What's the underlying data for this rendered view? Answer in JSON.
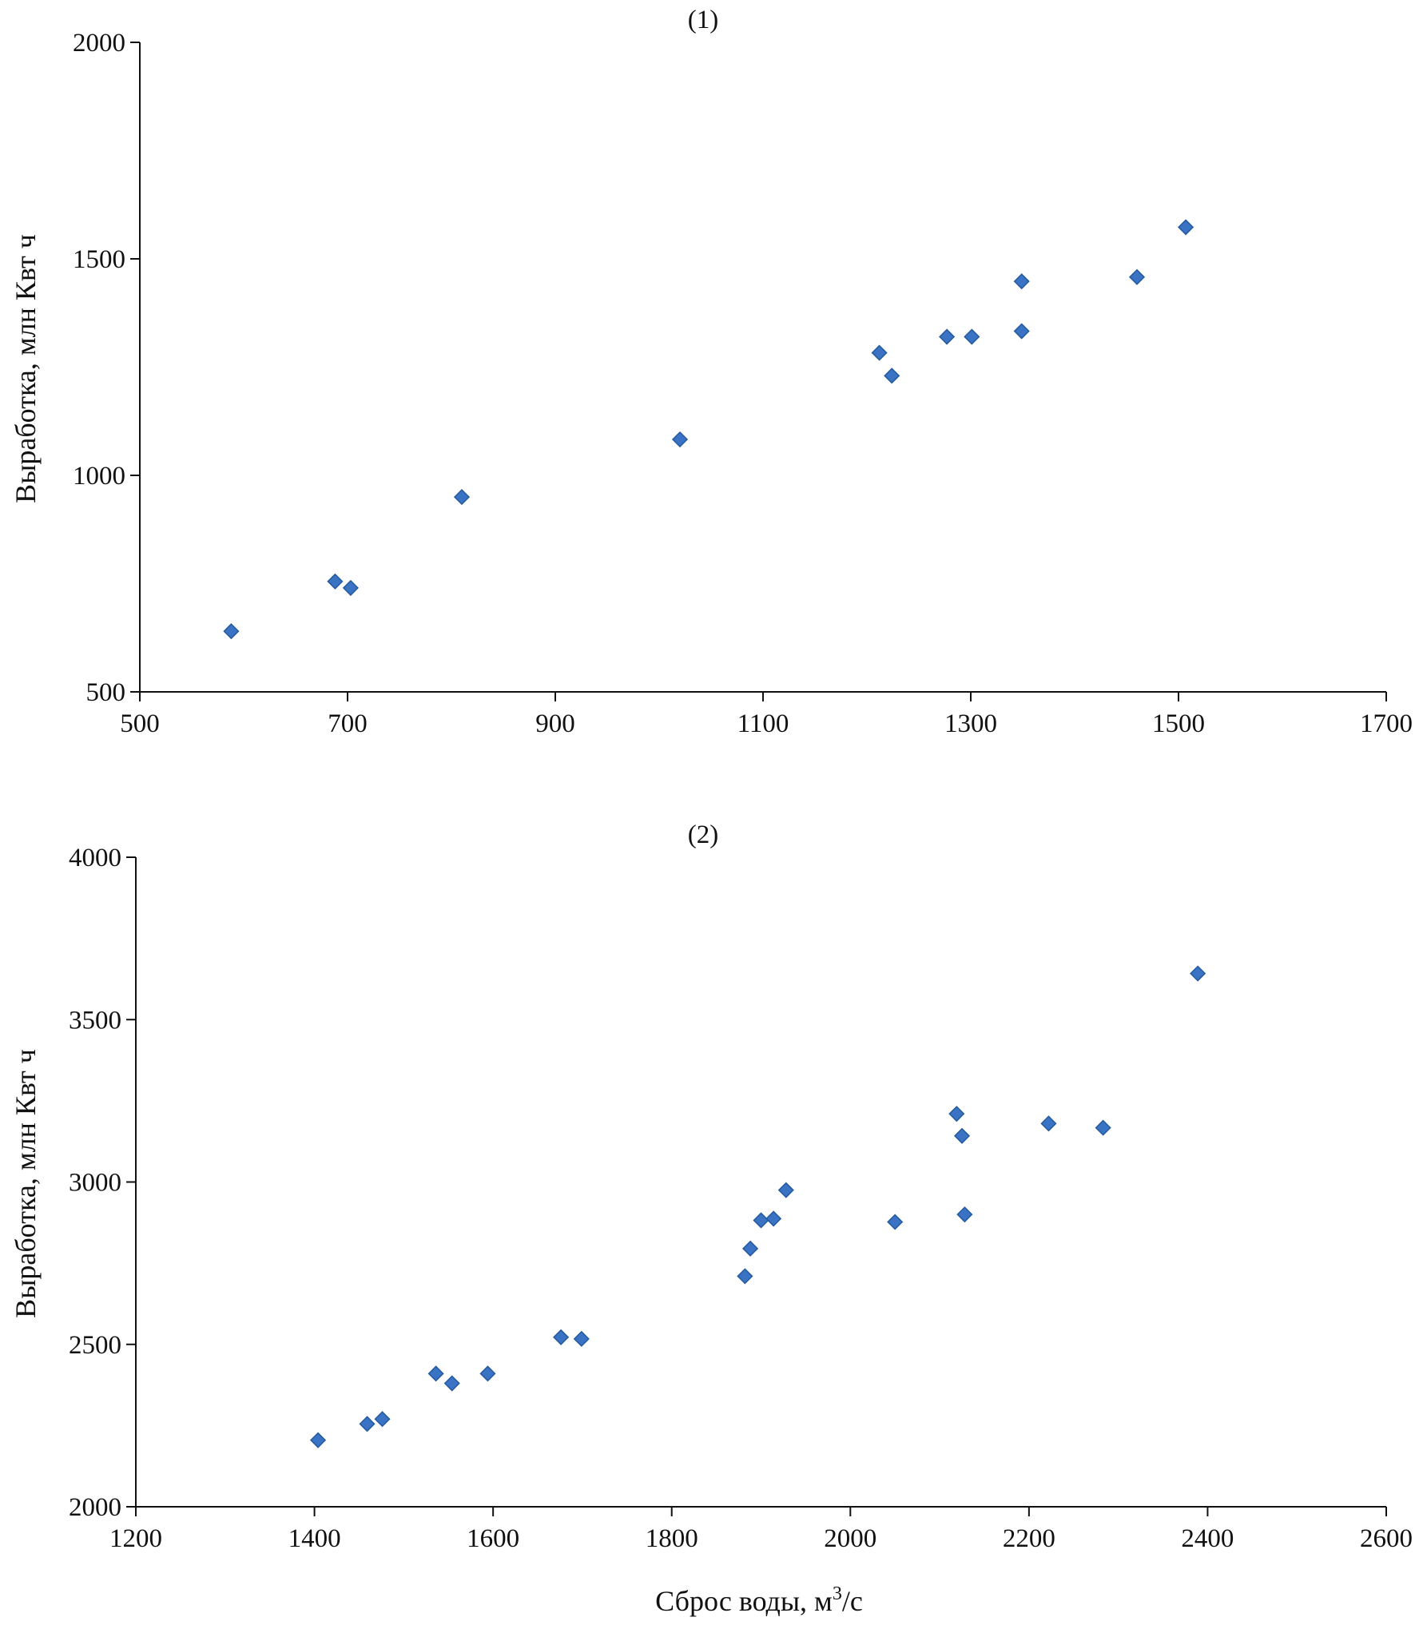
{
  "chart_data": [
    {
      "type": "scatter",
      "title": "(1)",
      "xlabel": "",
      "ylabel": "Выработка, млн Квт ч",
      "xlim": [
        500,
        1700
      ],
      "ylim": [
        500,
        2000
      ],
      "xticks": [
        500,
        700,
        900,
        1100,
        1300,
        1500,
        1700
      ],
      "yticks": [
        500,
        1000,
        1500,
        2000
      ],
      "grid": false,
      "marker": "diamond",
      "color": "#3a72c4",
      "series": [
        {
          "x": [
            588,
            688,
            703,
            810,
            1020,
            1212,
            1224,
            1277,
            1301,
            1349,
            1349,
            1460,
            1507
          ],
          "y": [
            640,
            755,
            740,
            950,
            1083,
            1283,
            1230,
            1320,
            1320,
            1333,
            1448,
            1458,
            1573
          ]
        }
      ]
    },
    {
      "type": "scatter",
      "title": "(2)",
      "xlabel": "Сброс воды, м",
      "xlabel_sup": "3",
      "xlabel_tail": "/с",
      "ylabel": "Выработка, млн Квт ч",
      "xlim": [
        1200,
        2600
      ],
      "ylim": [
        2000,
        4000
      ],
      "xticks": [
        1200,
        1400,
        1600,
        1800,
        2000,
        2200,
        2400,
        2600
      ],
      "yticks": [
        2000,
        2500,
        3000,
        3500,
        4000
      ],
      "grid": false,
      "marker": "diamond",
      "color": "#3a72c4",
      "series": [
        {
          "x": [
            1404,
            1459,
            1476,
            1536,
            1554,
            1594,
            1676,
            1699,
            1882,
            1888,
            1900,
            1914,
            1928,
            2050,
            2119,
            2125,
            2128,
            2222,
            2283,
            2389
          ],
          "y": [
            2205,
            2255,
            2270,
            2410,
            2380,
            2410,
            2522,
            2517,
            2710,
            2795,
            2882,
            2887,
            2975,
            2877,
            3210,
            3142,
            2900,
            3180,
            3167,
            3642
          ]
        }
      ]
    }
  ]
}
